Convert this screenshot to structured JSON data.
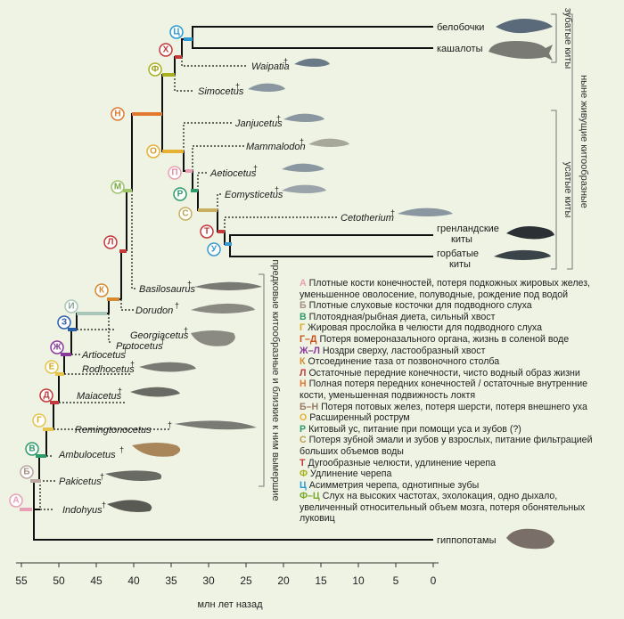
{
  "taxa": {
    "dolphins": "белобочки",
    "sperm": "кашалоты",
    "waipatia": "Waipatia",
    "simocetus": "Simocetus",
    "janjucetus": "Janjucetus",
    "mammalodon": "Mammalodon",
    "aetiocetus": "Aetiocetus",
    "eomysticetus": "Eomysticetus",
    "cetotherium": "Cetotherium",
    "bowhead": "гренландские\nкиты",
    "humpback": "горбатые\nкиты",
    "basilosaurus": "Basilosaurus",
    "dorudon": "Dorudon",
    "georgiacetus": "Georgiacetus",
    "protocetus": "Protocetus",
    "artiocetus": "Artiocetus",
    "rodhocetus": "Rodhocetus",
    "maiacetus": "Maiacetus",
    "remingtonocetus": "Remingtonocetus",
    "ambulocetus": "Ambulocetus",
    "pakicetus": "Pakicetus",
    "indohyus": "Indohyus",
    "hippo": "гиппопотамы"
  },
  "extinct_mark": "†",
  "groups": {
    "toothed": "зубатые киты",
    "baleen": "усатые киты",
    "living": "ныне живущие китообразные",
    "early": "предковые китообразные и близкие к ним вымершие"
  },
  "axis": {
    "title": "млн лет назад",
    "ticks": [
      "55",
      "50",
      "45",
      "40",
      "35",
      "30",
      "25",
      "20",
      "15",
      "10",
      "5",
      "0"
    ]
  },
  "nodes": [
    {
      "letter": "А",
      "color": "#e8a0b4"
    },
    {
      "letter": "Б",
      "color": "#b9a6a0"
    },
    {
      "letter": "В",
      "color": "#2e9a6a"
    },
    {
      "letter": "Г",
      "color": "#e6c34a"
    },
    {
      "letter": "Д",
      "color": "#c23a3a"
    },
    {
      "letter": "Е",
      "color": "#e6c34a"
    },
    {
      "letter": "Ж",
      "color": "#8a3a9a"
    },
    {
      "letter": "З",
      "color": "#2a5fa8"
    },
    {
      "letter": "И",
      "color": "#a8c7b8"
    },
    {
      "letter": "К",
      "color": "#d48a30"
    },
    {
      "letter": "Л",
      "color": "#c23a3a"
    },
    {
      "letter": "М",
      "color": "#9cc46a"
    },
    {
      "letter": "Н",
      "color": "#e07a30"
    },
    {
      "letter": "О",
      "color": "#e6b030"
    },
    {
      "letter": "П",
      "color": "#e8a0b4"
    },
    {
      "letter": "Р",
      "color": "#2e9a6a"
    },
    {
      "letter": "С",
      "color": "#c8b060"
    },
    {
      "letter": "Т",
      "color": "#c23a3a"
    },
    {
      "letter": "У",
      "color": "#3a9ad0"
    },
    {
      "letter": "Ф",
      "color": "#a8b020"
    },
    {
      "letter": "Х",
      "color": "#c23a3a"
    },
    {
      "letter": "Ц",
      "color": "#2a9ad0"
    }
  ],
  "legend": [
    {
      "key": "А",
      "color": "#e8a0b4",
      "text": "Плотные кости конечностей, потеря подкожных жировых желез, уменьшенное оволосение, полуводные, рождение под водой"
    },
    {
      "key": "Б",
      "color": "#a09080",
      "text": "Плотные слуховые косточки для подводного слуха"
    },
    {
      "key": "В",
      "color": "#2e9a6a",
      "text": "Плотоядная/рыбная диета, сильный хвост"
    },
    {
      "key": "Г",
      "color": "#d8a820",
      "text": "Жировая прослойка в челюсти для подводного слуха"
    },
    {
      "key": "Г–Д",
      "color": "#c8501a",
      "text": "Потеря вомероназального органа, жизнь в соленой воде"
    },
    {
      "key": "Ж–Л",
      "color": "#8a3a9a",
      "text": "Ноздри сверху, ластообразный хвост"
    },
    {
      "key": "К",
      "color": "#d48a30",
      "text": "Отсоединение таза от позвоночного столба"
    },
    {
      "key": "Л",
      "color": "#c23a3a",
      "text": "Остаточные передние конечности, чисто водный образ жизни"
    },
    {
      "key": "Н",
      "color": "#e07a30",
      "text": "Полная потеря передних конечностей / остаточные внутренние кости, уменьшенная подвижность локтя"
    },
    {
      "key": "Б–Н",
      "color": "#9a7a60",
      "text": "Потеря потовых желез, потеря шерсти, потеря внешнего уха"
    },
    {
      "key": "О",
      "color": "#e6b030",
      "text": "Расширенный рострум"
    },
    {
      "key": "Р",
      "color": "#2e9a6a",
      "text": "Китовый ус, питание при помощи уса и зубов (?)"
    },
    {
      "key": "С",
      "color": "#b8a050",
      "text": "Потеря зубной эмали и зубов у взрослых, питание фильтрацией больших объемов воды"
    },
    {
      "key": "Т",
      "color": "#c23a3a",
      "text": "Дугообразные челюсти, удлинение черепа"
    },
    {
      "key": "Ф",
      "color": "#a8b020",
      "text": "Удлинение черепа"
    },
    {
      "key": "Ц",
      "color": "#2a9ad0",
      "text": "Асимметрия черепа, однотипные зубы"
    },
    {
      "key": "Ф–Ц",
      "color": "#7aa830",
      "text": "Слух на высоких частотах, эхолокация, одно дыхало, увеличенный относительный объем мозга, потеря обонятельных луковиц"
    }
  ],
  "colors": {
    "background": "#eef3e4",
    "branch": "#111111",
    "bracket": "#666666"
  }
}
